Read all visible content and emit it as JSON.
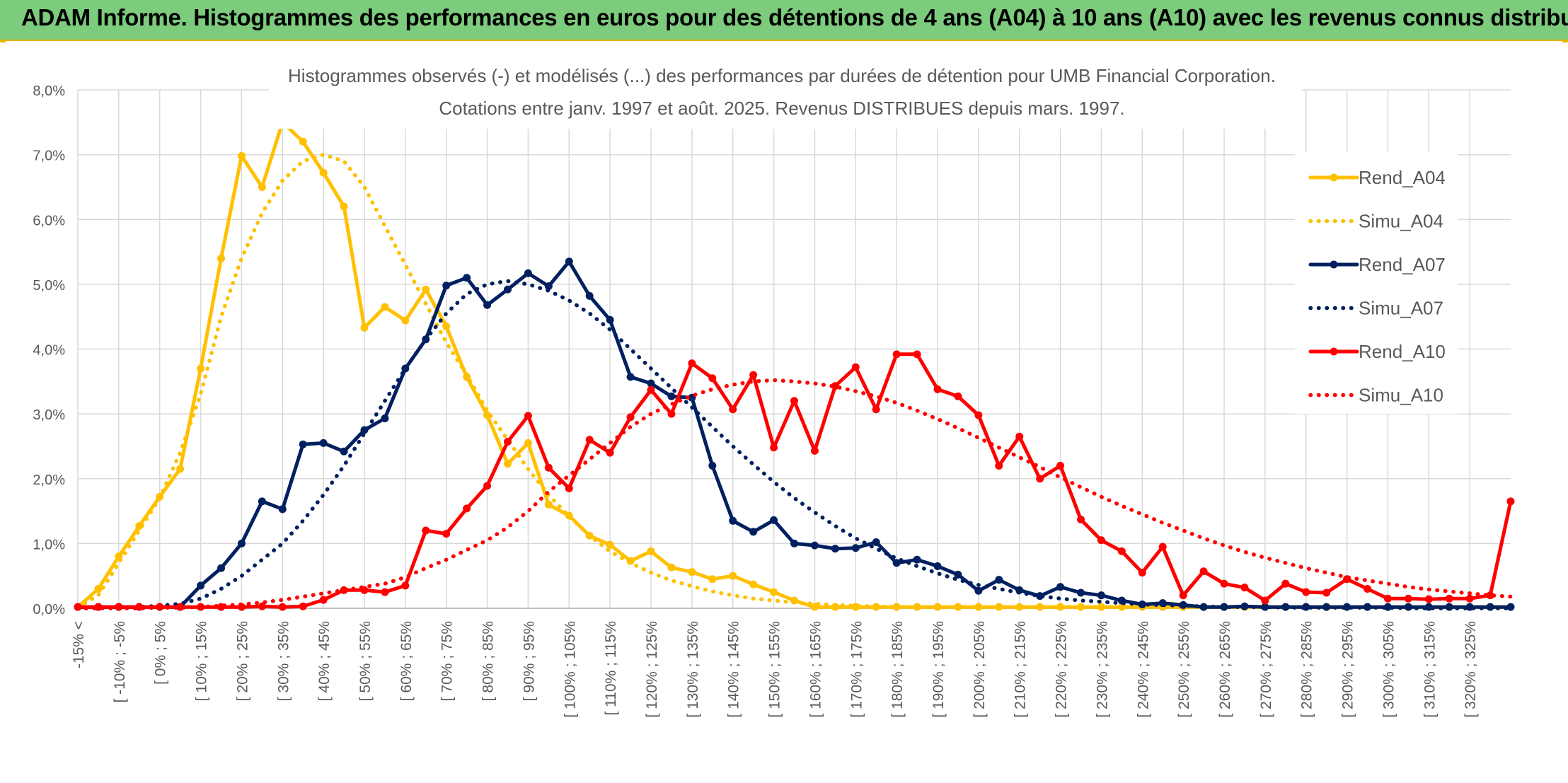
{
  "page_title": "ADAM Informe. Histogrammes des performances en euros pour des détentions de 4 ans (A04) à 10 ans (A10) avec les revenus connus distribués",
  "colors": {
    "banner": "#7dcb7d",
    "a04": "#ffc000",
    "a07": "#002060",
    "a10": "#ff0000",
    "grid": "#d9d9d9",
    "axis_text": "#595959"
  },
  "chart_data": {
    "type": "line",
    "title": "Histogrammes observés (-) et modélisés (...) des performances par durées de détention pour UMB Financial Corporation.",
    "subtitle": "Cotations entre janv. 1997 et août. 2025. Revenus DISTRIBUES depuis mars. 1997.",
    "xlabel": "",
    "ylabel": "",
    "ylim": [
      0,
      8
    ],
    "y_ticks": [
      "0,0%",
      "1,0%",
      "2,0%",
      "3,0%",
      "4,0%",
      "5,0%",
      "6,0%",
      "7,0%",
      "8,0%"
    ],
    "grid": true,
    "legend_position": "right",
    "x_tick_labels": [
      "-15% <",
      "[ -10% ; -5%",
      "[ 0% ; 5%",
      "[ 10% ; 15%",
      "[ 20% ; 25%",
      "[ 30% ; 35%",
      "[ 40% ; 45%",
      "[ 50% ; 55%",
      "[ 60% ; 65%",
      "[ 70% ; 75%",
      "[ 80% ; 85%",
      "[ 90% ; 95%",
      "[ 100% ; 105%",
      "[ 110% ; 115%",
      "[ 120% ; 125%",
      "[ 130% ; 135%",
      "[ 140% ; 145%",
      "[ 150% ; 155%",
      "[ 160% ; 165%",
      "[ 170% ; 175%",
      "[ 180% ; 185%",
      "[ 190% ; 195%",
      "[ 200% ; 205%",
      "[ 210% ; 215%",
      "[ 220% ; 225%",
      "[ 230% ; 235%",
      "[ 240% ; 245%",
      "[ 250% ; 255%",
      "[ 260% ; 265%",
      "[ 270% ; 275%",
      "[ 280% ; 285%",
      "[ 290% ; 295%",
      "[ 300% ; 305%",
      "[ 310% ; 315%",
      "[ 320% ; 325%"
    ],
    "x_tick_positions": [
      0,
      2,
      4,
      6,
      8,
      10,
      12,
      14,
      16,
      18,
      20,
      22,
      24,
      26,
      28,
      30,
      32,
      34,
      36,
      38,
      40,
      42,
      44,
      46,
      48,
      50,
      52,
      54,
      56,
      58,
      60,
      62,
      64,
      66,
      68
    ],
    "categories_count": 71,
    "series": [
      {
        "name": "Rend_A04",
        "style": "solid",
        "markers": true,
        "color": "#ffc000",
        "values": [
          0.02,
          0.3,
          0.8,
          1.27,
          1.72,
          2.15,
          3.7,
          5.4,
          6.98,
          6.5,
          7.5,
          7.2,
          6.72,
          6.2,
          4.33,
          4.65,
          4.44,
          4.92,
          4.35,
          3.57,
          2.98,
          2.23,
          2.55,
          1.6,
          1.43,
          1.12,
          0.98,
          0.73,
          0.88,
          0.63,
          0.56,
          0.45,
          0.5,
          0.37,
          0.25,
          0.12,
          0.02,
          0.02,
          0.02,
          0.02,
          0.02,
          0.02,
          0.02,
          0.02,
          0.02,
          0.02,
          0.02,
          0.02,
          0.02,
          0.02,
          0.02,
          0.02,
          0.02,
          0.02,
          0.02,
          0.02,
          0.02,
          0.02,
          0.02,
          0.02,
          0.02,
          0.02,
          0.02,
          0.02,
          0.02,
          0.02,
          0.02,
          0.02,
          0.02,
          0.02,
          0.02
        ]
      },
      {
        "name": "Simu_A04",
        "style": "dotted",
        "markers": false,
        "color": "#ffc000",
        "values": [
          0.02,
          0.2,
          0.7,
          1.2,
          1.7,
          2.4,
          3.3,
          4.5,
          5.4,
          6.1,
          6.6,
          6.9,
          7.0,
          6.9,
          6.5,
          5.9,
          5.3,
          4.7,
          4.1,
          3.6,
          3.05,
          2.6,
          2.15,
          1.75,
          1.42,
          1.12,
          0.88,
          0.7,
          0.55,
          0.43,
          0.34,
          0.26,
          0.2,
          0.15,
          0.12,
          0.09,
          0.07,
          0.05,
          0.04,
          0.03,
          0.02,
          0.02,
          0.02,
          0.02,
          0.02,
          0.02,
          0.02,
          0.02,
          0.02,
          0.02,
          0.02,
          0.02,
          0.02,
          0.02,
          0.02,
          0.02,
          0.02,
          0.02,
          0.02,
          0.02,
          0.02,
          0.02,
          0.02,
          0.02,
          0.02,
          0.02,
          0.02,
          0.02,
          0.02,
          0.02,
          0.02
        ]
      },
      {
        "name": "Rend_A07",
        "style": "solid",
        "markers": true,
        "color": "#002060",
        "values": [
          0.02,
          0.02,
          0.02,
          0.02,
          0.02,
          0.02,
          0.35,
          0.62,
          1.0,
          1.65,
          1.53,
          2.53,
          2.55,
          2.42,
          2.75,
          2.93,
          3.7,
          4.15,
          4.98,
          5.1,
          4.68,
          4.92,
          5.17,
          4.97,
          5.35,
          4.82,
          4.45,
          3.57,
          3.47,
          3.27,
          3.25,
          2.2,
          1.35,
          1.18,
          1.36,
          1.0,
          0.97,
          0.92,
          0.93,
          1.02,
          0.7,
          0.75,
          0.65,
          0.52,
          0.27,
          0.44,
          0.28,
          0.19,
          0.33,
          0.24,
          0.2,
          0.12,
          0.06,
          0.08,
          0.05,
          0.02,
          0.02,
          0.03,
          0.02,
          0.02,
          0.02,
          0.02,
          0.02,
          0.02,
          0.02,
          0.02,
          0.02,
          0.02,
          0.02,
          0.02,
          0.02
        ]
      },
      {
        "name": "Simu_A07",
        "style": "dotted",
        "markers": false,
        "color": "#002060",
        "values": [
          0.0,
          0.0,
          0.01,
          0.02,
          0.04,
          0.07,
          0.15,
          0.3,
          0.5,
          0.75,
          1.0,
          1.35,
          1.75,
          2.2,
          2.7,
          3.2,
          3.7,
          4.15,
          4.55,
          4.85,
          5.0,
          5.05,
          5.0,
          4.9,
          4.75,
          4.55,
          4.3,
          4.0,
          3.7,
          3.4,
          3.1,
          2.8,
          2.5,
          2.22,
          1.95,
          1.7,
          1.48,
          1.27,
          1.08,
          0.92,
          0.77,
          0.65,
          0.54,
          0.44,
          0.36,
          0.3,
          0.24,
          0.19,
          0.15,
          0.12,
          0.1,
          0.08,
          0.06,
          0.05,
          0.04,
          0.03,
          0.02,
          0.02,
          0.02,
          0.01,
          0.01,
          0.01,
          0.01,
          0.01,
          0.01,
          0.0,
          0.0,
          0.0,
          0.0,
          0.0,
          0.0
        ]
      },
      {
        "name": "Rend_A10",
        "style": "solid",
        "markers": true,
        "color": "#ff0000",
        "values": [
          0.02,
          0.02,
          0.02,
          0.02,
          0.02,
          0.02,
          0.02,
          0.02,
          0.02,
          0.03,
          0.02,
          0.03,
          0.13,
          0.28,
          0.28,
          0.25,
          0.35,
          1.2,
          1.15,
          1.54,
          1.89,
          2.57,
          2.97,
          2.17,
          1.85,
          2.6,
          2.4,
          2.95,
          3.37,
          3.0,
          3.78,
          3.55,
          3.07,
          3.6,
          2.48,
          3.2,
          2.43,
          3.43,
          3.72,
          3.07,
          3.92,
          3.92,
          3.38,
          3.27,
          2.98,
          2.2,
          2.65,
          2.0,
          2.2,
          1.37,
          1.05,
          0.88,
          0.55,
          0.95,
          0.2,
          0.57,
          0.38,
          0.32,
          0.12,
          0.38,
          0.25,
          0.24,
          0.45,
          0.3,
          0.15,
          0.15,
          0.14,
          0.15,
          0.15,
          0.2,
          1.65
        ]
      },
      {
        "name": "Simu_A10",
        "style": "dotted",
        "markers": false,
        "color": "#ff0000",
        "values": [
          0.0,
          0.0,
          0.0,
          0.0,
          0.01,
          0.01,
          0.02,
          0.04,
          0.06,
          0.09,
          0.13,
          0.18,
          0.23,
          0.28,
          0.33,
          0.38,
          0.48,
          0.62,
          0.75,
          0.9,
          1.05,
          1.25,
          1.5,
          1.8,
          2.05,
          2.3,
          2.55,
          2.8,
          3.0,
          3.15,
          3.28,
          3.38,
          3.45,
          3.5,
          3.52,
          3.5,
          3.47,
          3.42,
          3.35,
          3.27,
          3.17,
          3.05,
          2.92,
          2.78,
          2.63,
          2.48,
          2.33,
          2.18,
          2.02,
          1.87,
          1.72,
          1.58,
          1.45,
          1.32,
          1.2,
          1.08,
          0.97,
          0.87,
          0.78,
          0.7,
          0.62,
          0.55,
          0.48,
          0.43,
          0.38,
          0.33,
          0.29,
          0.26,
          0.23,
          0.2,
          0.18
        ]
      }
    ]
  }
}
